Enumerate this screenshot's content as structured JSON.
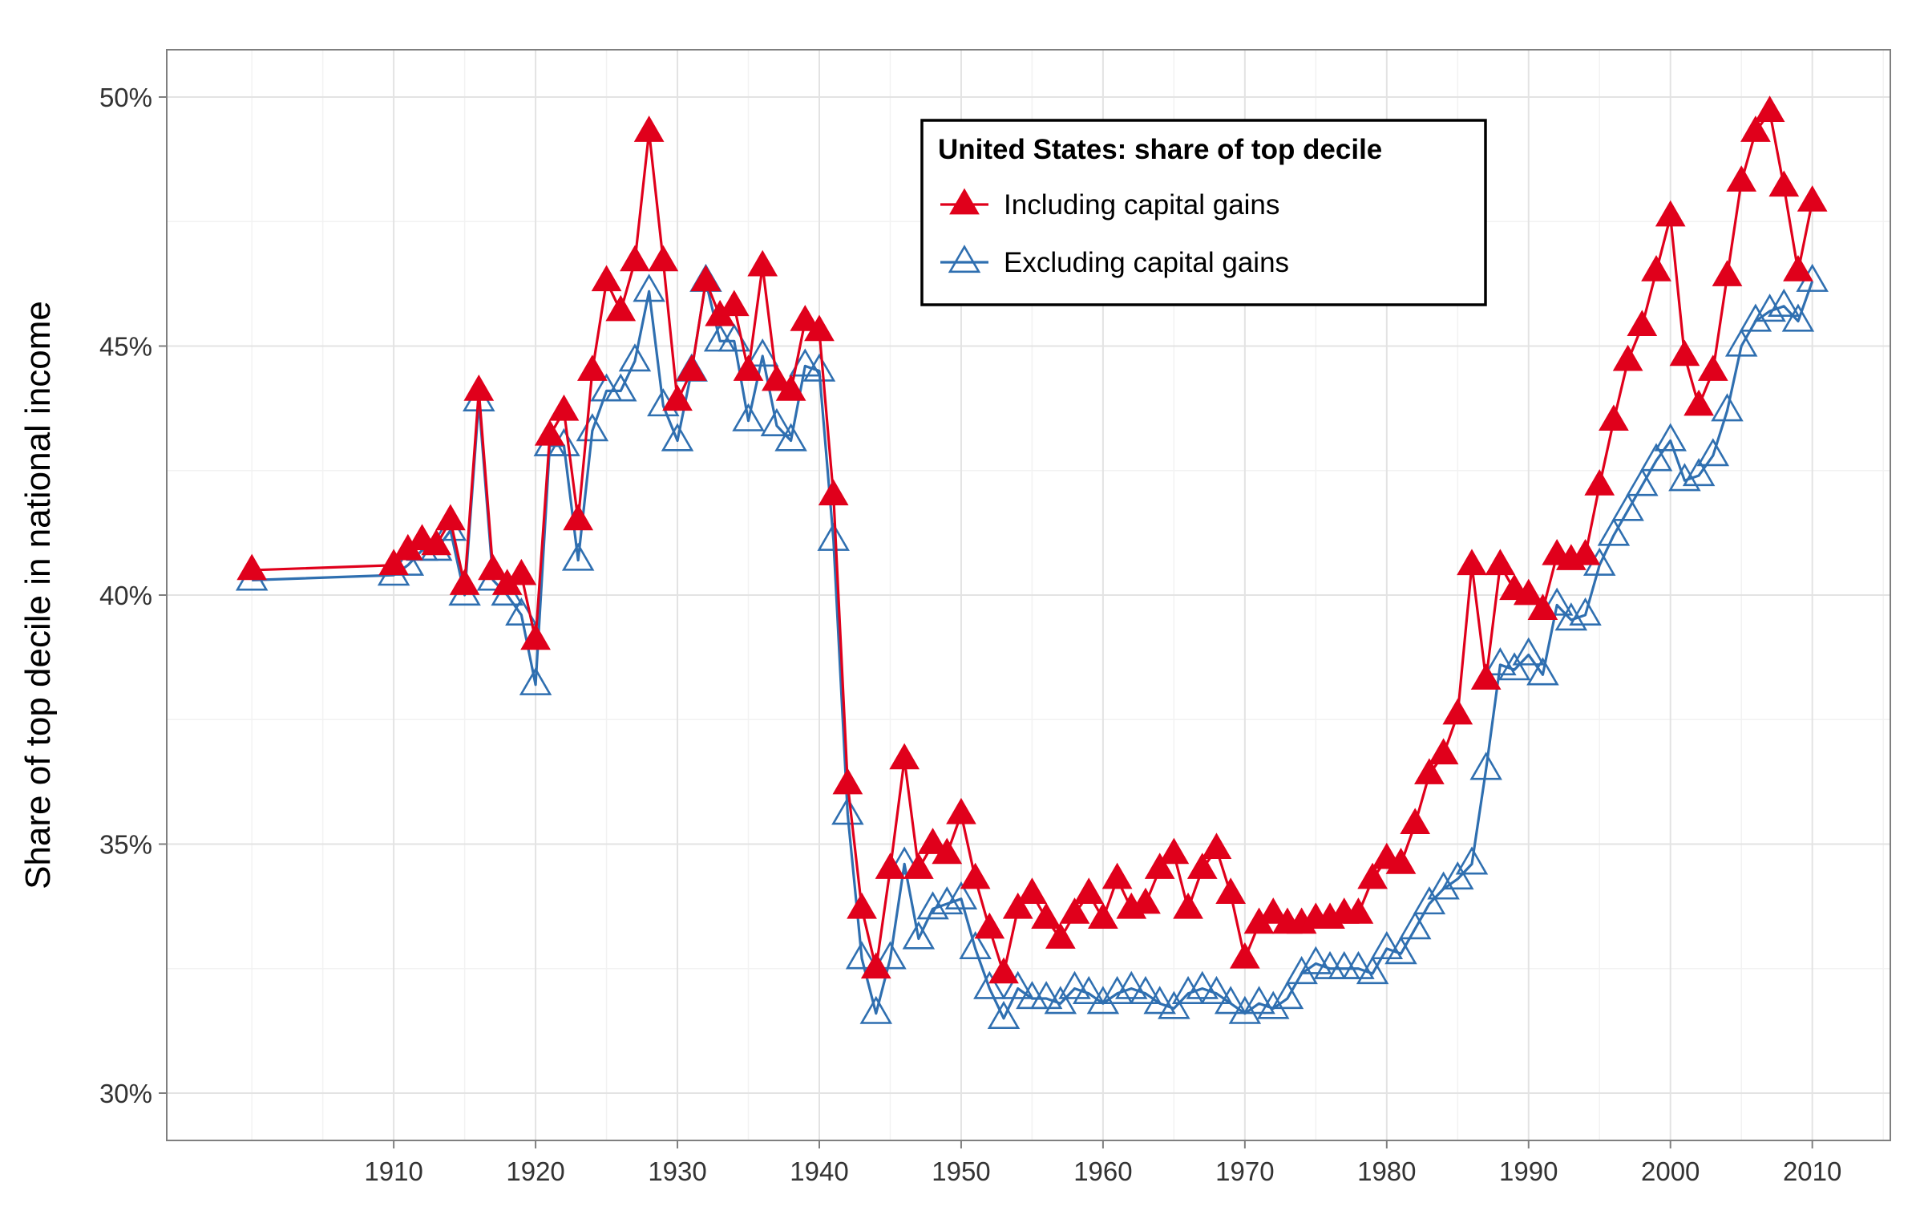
{
  "chart_data": {
    "type": "line",
    "title": "",
    "ylabel": "Share of top decile in national income",
    "xlabel": "",
    "xlim": [
      1894,
      2015.5
    ],
    "ylim": [
      29.05,
      50.95
    ],
    "x_ticks": [
      1910,
      1920,
      1930,
      1940,
      1950,
      1960,
      1970,
      1980,
      1990,
      2000,
      2010
    ],
    "x_tick_labels": [
      "1910",
      "1920",
      "1930",
      "1940",
      "1950",
      "1960",
      "1970",
      "1980",
      "1990",
      "2000",
      "2010"
    ],
    "y_ticks": [
      30,
      35,
      40,
      45,
      50
    ],
    "y_tick_labels": [
      "30%",
      "35%",
      "40%",
      "45%",
      "50%"
    ],
    "grid": true,
    "legend": {
      "title": "United States: share of top decile",
      "position": "top-center",
      "entries": [
        "Including capital gains",
        "Excluding capital gains"
      ]
    },
    "x": [
      1900,
      1910,
      1911,
      1912,
      1913,
      1914,
      1915,
      1916,
      1917,
      1918,
      1919,
      1920,
      1921,
      1922,
      1923,
      1924,
      1925,
      1926,
      1927,
      1928,
      1929,
      1930,
      1931,
      1932,
      1933,
      1934,
      1935,
      1936,
      1937,
      1938,
      1939,
      1940,
      1941,
      1942,
      1943,
      1944,
      1945,
      1946,
      1947,
      1948,
      1949,
      1950,
      1951,
      1952,
      1953,
      1954,
      1955,
      1956,
      1957,
      1958,
      1959,
      1960,
      1961,
      1962,
      1963,
      1964,
      1965,
      1966,
      1967,
      1968,
      1969,
      1970,
      1971,
      1972,
      1973,
      1974,
      1975,
      1976,
      1977,
      1978,
      1979,
      1980,
      1981,
      1982,
      1983,
      1984,
      1985,
      1986,
      1987,
      1988,
      1989,
      1990,
      1991,
      1992,
      1993,
      1994,
      1995,
      1996,
      1997,
      1998,
      1999,
      2000,
      2001,
      2002,
      2003,
      2004,
      2005,
      2006,
      2007,
      2008,
      2009,
      2010
    ],
    "series": [
      {
        "name": "Including capital gains",
        "color": "#e0001b",
        "marker": "filled-triangle",
        "values": [
          40.5,
          40.6,
          40.9,
          41.1,
          41.0,
          41.5,
          40.2,
          44.1,
          40.5,
          40.2,
          40.4,
          39.1,
          43.2,
          43.7,
          41.5,
          44.5,
          46.3,
          45.7,
          46.7,
          49.3,
          46.7,
          43.9,
          44.5,
          46.3,
          45.6,
          45.8,
          44.5,
          46.6,
          44.3,
          44.1,
          45.5,
          45.3,
          42.0,
          36.2,
          33.7,
          32.5,
          34.5,
          36.7,
          34.5,
          35.0,
          34.8,
          35.6,
          34.3,
          33.3,
          32.4,
          33.7,
          34.0,
          33.5,
          33.1,
          33.6,
          34.0,
          33.5,
          34.3,
          33.7,
          33.8,
          34.5,
          34.8,
          33.7,
          34.5,
          34.9,
          34.0,
          32.7,
          33.4,
          33.6,
          33.4,
          33.4,
          33.5,
          33.5,
          33.6,
          33.6,
          34.3,
          34.7,
          34.6,
          35.4,
          36.4,
          36.8,
          37.6,
          40.6,
          38.3,
          40.6,
          40.1,
          40.0,
          39.7,
          40.8,
          40.7,
          40.8,
          42.2,
          43.5,
          44.7,
          45.4,
          46.5,
          47.6,
          44.8,
          43.8,
          44.5,
          46.4,
          48.3,
          49.3,
          49.7,
          48.2,
          46.5,
          47.9
        ]
      },
      {
        "name": "Excluding capital gains",
        "color": "#2f6fb0",
        "marker": "hollow-triangle",
        "values": [
          40.3,
          40.4,
          40.6,
          40.9,
          40.9,
          41.3,
          40.0,
          43.9,
          40.3,
          40.0,
          39.6,
          38.2,
          43.0,
          43.0,
          40.7,
          43.3,
          44.1,
          44.1,
          44.7,
          46.1,
          43.8,
          43.1,
          44.5,
          46.3,
          45.1,
          45.1,
          43.5,
          44.8,
          43.4,
          43.1,
          44.6,
          44.5,
          41.1,
          35.6,
          32.7,
          31.6,
          32.7,
          34.6,
          33.1,
          33.7,
          33.8,
          33.9,
          32.9,
          32.1,
          31.5,
          32.1,
          31.9,
          31.9,
          31.8,
          32.1,
          32.0,
          31.8,
          32.0,
          32.1,
          32.0,
          31.8,
          31.7,
          32.0,
          32.1,
          32.0,
          31.8,
          31.6,
          31.8,
          31.7,
          31.9,
          32.4,
          32.6,
          32.5,
          32.5,
          32.5,
          32.4,
          32.9,
          32.8,
          33.3,
          33.8,
          34.1,
          34.3,
          34.6,
          36.5,
          38.6,
          38.5,
          38.8,
          38.4,
          39.8,
          39.5,
          39.6,
          40.6,
          41.2,
          41.7,
          42.2,
          42.7,
          43.1,
          42.3,
          42.4,
          42.8,
          43.7,
          45.0,
          45.5,
          45.7,
          45.8,
          45.5,
          46.3
        ]
      }
    ]
  }
}
